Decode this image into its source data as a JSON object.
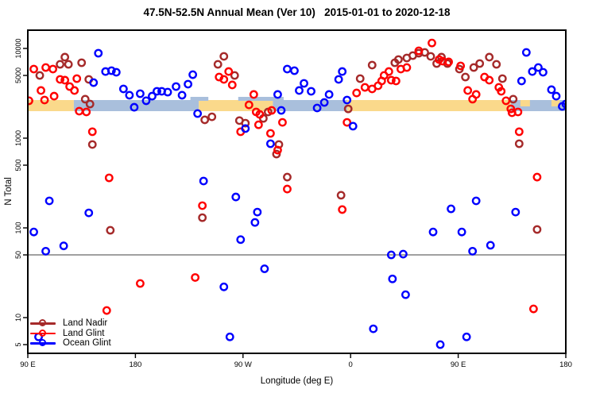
{
  "title": "47.5N-52.5N Annual Mean (Ver 10)   2015-01-01 to 2020-12-18",
  "axes": {
    "y_label": "N Total",
    "x_label": "Longitude (deg E)",
    "y_ticks": [
      {
        "v": 10000,
        "label": "10000"
      },
      {
        "v": 5000,
        "label": "5000"
      },
      {
        "v": 1000,
        "label": "1000"
      },
      {
        "v": 500,
        "label": "500"
      },
      {
        "v": 100,
        "label": "100"
      },
      {
        "v": 50,
        "label": "50"
      },
      {
        "v": 10,
        "label": "10"
      },
      {
        "v": 5,
        "label": "5"
      }
    ],
    "x_ticks": [
      {
        "deg": 90,
        "label": "90 E"
      },
      {
        "deg": 180,
        "label": "180"
      },
      {
        "deg": 270,
        "label": "90 W"
      },
      {
        "deg": 360,
        "label": "0"
      },
      {
        "deg": 450,
        "label": "90 E"
      },
      {
        "deg": 540,
        "label": "180"
      }
    ]
  },
  "colors": {
    "land_nadir": "#A52A2A",
    "land_glint": "#FF0000",
    "ocean_glint": "#0000FF",
    "band_land": "#FAD98B",
    "band_ocean": "#A9BFDC",
    "refline": "#808080",
    "frame": "#000000"
  },
  "refline_value": 50,
  "map_strip": {
    "y": 126,
    "h": 14,
    "segments": [
      {
        "d0": 90,
        "d1": 128.5,
        "type": "land"
      },
      {
        "d0": 128.5,
        "d1": 233,
        "type": "ocean"
      },
      {
        "d0": 233,
        "d1": 295,
        "type": "land"
      },
      {
        "d0": 295,
        "d1": 357,
        "type": "ocean"
      },
      {
        "d0": 357,
        "d1": 494,
        "type": "land"
      },
      {
        "d0": 494,
        "d1": 540,
        "type": "ocean"
      }
    ],
    "details": [
      {
        "d0": 226,
        "d1": 241,
        "type": "ocean",
        "pos": "top"
      },
      {
        "d0": 266,
        "d1": 304,
        "type": "ocean",
        "pos": "top"
      },
      {
        "d0": 502,
        "d1": 510,
        "type": "land",
        "pos": "notch"
      },
      {
        "d0": 528,
        "d1": 535,
        "type": "land",
        "pos": "notch"
      }
    ]
  },
  "legend": [
    {
      "label": "Land Nadir",
      "key": "land_nadir"
    },
    {
      "label": "Land Glint",
      "key": "land_glint"
    },
    {
      "label": "Ocean Glint",
      "key": "ocean_glint"
    }
  ],
  "chart_data": {
    "type": "scatter",
    "title": "47.5N-52.5N Annual Mean (Ver 10)   2015-01-01 to 2020-12-18",
    "xlabel": "Longitude (deg E)",
    "ylabel": "N Total",
    "x_axis_degrees_east_span": [
      90,
      540
    ],
    "y_log_scale": true,
    "ylim": [
      4.5,
      13000
    ],
    "series": [
      {
        "name": "Land Nadir",
        "color_key": "land_nadir",
        "points": [
          [
            100,
            5000
          ],
          [
            117,
            6650
          ],
          [
            121,
            8000
          ],
          [
            124,
            6650
          ],
          [
            135,
            6930
          ],
          [
            141,
            4520
          ],
          [
            138,
            2720
          ],
          [
            142,
            2400
          ],
          [
            144,
            850
          ],
          [
            254,
            8160
          ],
          [
            249,
            6650
          ],
          [
            263,
            5000
          ],
          [
            244,
            1730
          ],
          [
            238,
            1600
          ],
          [
            267,
            1570
          ],
          [
            272,
            1470
          ],
          [
            287,
            1660
          ],
          [
            291,
            1960
          ],
          [
            300,
            850
          ],
          [
            378,
            6520
          ],
          [
            368,
            4610
          ],
          [
            358,
            2120
          ],
          [
            298,
            665
          ],
          [
            307,
            368
          ],
          [
            352,
            231
          ],
          [
            236,
            130
          ],
          [
            159,
            94
          ],
          [
            516,
            96
          ],
          [
            397,
            6930
          ],
          [
            400,
            7520
          ],
          [
            407,
            7830
          ],
          [
            412,
            8320
          ],
          [
            417,
            8850
          ],
          [
            422,
            9030
          ],
          [
            427,
            8160
          ],
          [
            432,
            6790
          ],
          [
            436,
            8000
          ],
          [
            441,
            6790
          ],
          [
            451,
            5890
          ],
          [
            456,
            4800
          ],
          [
            463,
            6130
          ],
          [
            468,
            6790
          ],
          [
            476,
            8000
          ],
          [
            482,
            6650
          ],
          [
            487,
            4610
          ],
          [
            496,
            2720
          ],
          [
            501,
            867
          ]
        ]
      },
      {
        "name": "Land Glint",
        "color_key": "land_glint",
        "points": [
          [
            91,
            2610
          ],
          [
            95,
            5890
          ],
          [
            105,
            6130
          ],
          [
            111,
            5890
          ],
          [
            101,
            3400
          ],
          [
            104,
            2660
          ],
          [
            112,
            2940
          ],
          [
            117,
            4520
          ],
          [
            121,
            4430
          ],
          [
            125,
            3760
          ],
          [
            129,
            3400
          ],
          [
            131,
            4610
          ],
          [
            133,
            2000
          ],
          [
            139,
            1960
          ],
          [
            144,
            1180
          ],
          [
            250,
            4800
          ],
          [
            254,
            4520
          ],
          [
            258,
            5530
          ],
          [
            261,
            3920
          ],
          [
            279,
            3070
          ],
          [
            275,
            2350
          ],
          [
            281,
            1960
          ],
          [
            284,
            1840
          ],
          [
            294,
            2040
          ],
          [
            283,
            1410
          ],
          [
            268,
            1180
          ],
          [
            293,
            1130
          ],
          [
            303,
            1500
          ],
          [
            365,
            3190
          ],
          [
            372,
            3680
          ],
          [
            378,
            3540
          ],
          [
            383,
            3840
          ],
          [
            386,
            4340
          ],
          [
            357,
            1500
          ],
          [
            388,
            5000
          ],
          [
            392,
            5530
          ],
          [
            394,
            4430
          ],
          [
            398,
            4340
          ],
          [
            402,
            5890
          ],
          [
            407,
            6130
          ],
          [
            417,
            9400
          ],
          [
            428,
            11500
          ],
          [
            434,
            7520
          ],
          [
            437,
            7220
          ],
          [
            442,
            7080
          ],
          [
            452,
            6390
          ],
          [
            458,
            3400
          ],
          [
            462,
            2720
          ],
          [
            465,
            3070
          ],
          [
            472,
            4800
          ],
          [
            476,
            4430
          ],
          [
            484,
            3680
          ],
          [
            486,
            3330
          ],
          [
            490,
            2610
          ],
          [
            494,
            2120
          ],
          [
            495,
            1920
          ],
          [
            500,
            1960
          ],
          [
            501,
            1180
          ],
          [
            158,
            361
          ],
          [
            236,
            177
          ],
          [
            184,
            24
          ],
          [
            230,
            28
          ],
          [
            156,
            12
          ],
          [
            299,
            736
          ],
          [
            307,
            271
          ],
          [
            353,
            160
          ],
          [
            516,
            368
          ],
          [
            513,
            12.5
          ]
        ]
      },
      {
        "name": "Ocean Glint",
        "color_key": "ocean_glint",
        "points": [
          [
            149,
            8850
          ],
          [
            155,
            5530
          ],
          [
            160,
            5650
          ],
          [
            164,
            5430
          ],
          [
            145,
            4160
          ],
          [
            170,
            3540
          ],
          [
            175,
            3010
          ],
          [
            179,
            2210
          ],
          [
            184,
            3130
          ],
          [
            189,
            2610
          ],
          [
            194,
            2940
          ],
          [
            198,
            3330
          ],
          [
            202,
            3330
          ],
          [
            207,
            3260
          ],
          [
            214,
            3760
          ],
          [
            219,
            3010
          ],
          [
            224,
            4000
          ],
          [
            228,
            5100
          ],
          [
            232,
            1880
          ],
          [
            307,
            5890
          ],
          [
            313,
            5650
          ],
          [
            317,
            3400
          ],
          [
            321,
            4080
          ],
          [
            327,
            3330
          ],
          [
            299,
            3070
          ],
          [
            302,
            2040
          ],
          [
            332,
            2170
          ],
          [
            338,
            2500
          ],
          [
            342,
            3070
          ],
          [
            350,
            4520
          ],
          [
            353,
            5530
          ],
          [
            357,
            2660
          ],
          [
            362,
            1360
          ],
          [
            272,
            1280
          ],
          [
            293,
            867
          ],
          [
            507,
            9030
          ],
          [
            512,
            5530
          ],
          [
            517,
            6130
          ],
          [
            521,
            5430
          ],
          [
            503,
            4340
          ],
          [
            528,
            3470
          ],
          [
            532,
            2940
          ],
          [
            537,
            2260
          ],
          [
            540,
            2400
          ],
          [
            108,
            200
          ],
          [
            141,
            147
          ],
          [
            95,
            90
          ],
          [
            105,
            55
          ],
          [
            120,
            63
          ],
          [
            237,
            333
          ],
          [
            264,
            221
          ],
          [
            282,
            150
          ],
          [
            280,
            115
          ],
          [
            268,
            74
          ],
          [
            288,
            35
          ],
          [
            254,
            22
          ],
          [
            259,
            6.1
          ],
          [
            379,
            7.5
          ],
          [
            465,
            200
          ],
          [
            444,
            163
          ],
          [
            498,
            150
          ],
          [
            429,
            90
          ],
          [
            453,
            90
          ],
          [
            477,
            64
          ],
          [
            462,
            55
          ],
          [
            394,
            50
          ],
          [
            404,
            51
          ],
          [
            395,
            27
          ],
          [
            406,
            18
          ],
          [
            457,
            6.1
          ],
          [
            435,
            5
          ],
          [
            99,
            6.1
          ]
        ]
      }
    ]
  }
}
